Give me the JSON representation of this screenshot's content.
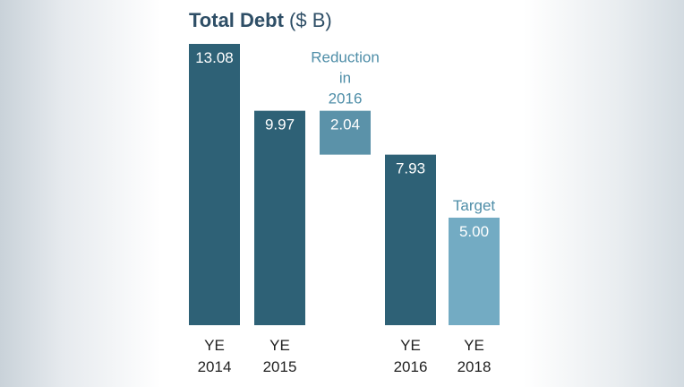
{
  "chart_data": {
    "type": "bar",
    "title": "Total Debt",
    "unit": "($ B)",
    "bars": [
      {
        "category": [
          "YE",
          "2014"
        ],
        "value": 13.08,
        "value_label": "13.08",
        "color": "#2e6176",
        "kind": "absolute"
      },
      {
        "category": [
          "YE",
          "2015"
        ],
        "value": 9.97,
        "value_label": "9.97",
        "color": "#2e6176",
        "kind": "absolute"
      },
      {
        "category": [
          "",
          ""
        ],
        "value": 2.04,
        "value_label": "2.04",
        "color": "#5b92a9",
        "kind": "reduction",
        "annotation": [
          "Reduction",
          "in",
          "2016"
        ]
      },
      {
        "category": [
          "YE",
          "2016"
        ],
        "value": 7.93,
        "value_label": "7.93",
        "color": "#2e6176",
        "kind": "absolute"
      },
      {
        "category": [
          "YE",
          "2018"
        ],
        "value": 5.0,
        "value_label": "5.00",
        "color": "#73abc3",
        "kind": "absolute",
        "annotation": [
          "Target"
        ]
      }
    ],
    "annotation_color": "#4f8ea8",
    "ylim": [
      0,
      13.08
    ],
    "grid": false,
    "legend": "none"
  }
}
